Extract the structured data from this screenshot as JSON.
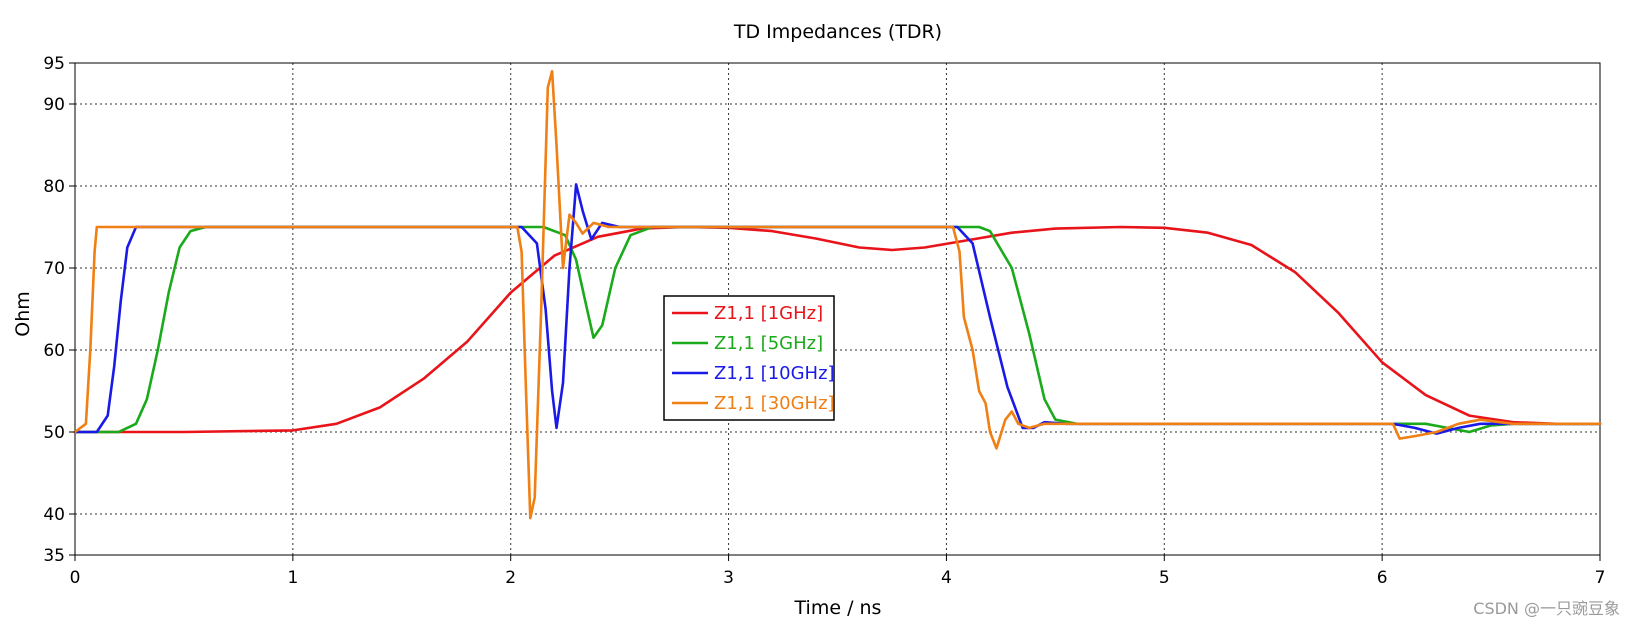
{
  "chart_data": {
    "type": "line",
    "title": "TD Impedances (TDR)",
    "xlabel": "Time / ns",
    "ylabel": "Ohm",
    "xlim": [
      0,
      7
    ],
    "ylim": [
      35,
      95
    ],
    "x_ticks": [
      0,
      1,
      2,
      3,
      4,
      5,
      6,
      7
    ],
    "y_ticks": [
      35,
      40,
      50,
      60,
      70,
      80,
      90,
      95
    ],
    "grid": true,
    "legend_position": "center",
    "series": [
      {
        "name": "Z1,1 [1GHz]",
        "color": "#e8141a",
        "points": [
          [
            0,
            50
          ],
          [
            0.5,
            50
          ],
          [
            1,
            50.2
          ],
          [
            1.2,
            51
          ],
          [
            1.4,
            53
          ],
          [
            1.6,
            56.5
          ],
          [
            1.8,
            61
          ],
          [
            2,
            67
          ],
          [
            2.2,
            71.5
          ],
          [
            2.4,
            73.8
          ],
          [
            2.6,
            74.8
          ],
          [
            2.8,
            75
          ],
          [
            3,
            74.9
          ],
          [
            3.2,
            74.5
          ],
          [
            3.4,
            73.6
          ],
          [
            3.6,
            72.5
          ],
          [
            3.75,
            72.2
          ],
          [
            3.9,
            72.5
          ],
          [
            4.1,
            73.4
          ],
          [
            4.3,
            74.3
          ],
          [
            4.5,
            74.8
          ],
          [
            4.8,
            75
          ],
          [
            5,
            74.9
          ],
          [
            5.2,
            74.3
          ],
          [
            5.4,
            72.8
          ],
          [
            5.6,
            69.5
          ],
          [
            5.8,
            64.5
          ],
          [
            6,
            58.5
          ],
          [
            6.2,
            54.5
          ],
          [
            6.4,
            52
          ],
          [
            6.6,
            51.2
          ],
          [
            6.8,
            51
          ],
          [
            7,
            51
          ]
        ]
      },
      {
        "name": "Z1,1 [5GHz]",
        "color": "#1aaa1a",
        "points": [
          [
            0,
            50
          ],
          [
            0.2,
            50
          ],
          [
            0.28,
            51
          ],
          [
            0.33,
            54
          ],
          [
            0.38,
            60
          ],
          [
            0.43,
            67
          ],
          [
            0.48,
            72.5
          ],
          [
            0.53,
            74.5
          ],
          [
            0.6,
            75
          ],
          [
            2.15,
            75
          ],
          [
            2.25,
            74
          ],
          [
            2.3,
            71
          ],
          [
            2.35,
            65
          ],
          [
            2.38,
            61.5
          ],
          [
            2.42,
            63
          ],
          [
            2.48,
            70
          ],
          [
            2.55,
            74
          ],
          [
            2.65,
            75
          ],
          [
            4.15,
            75
          ],
          [
            4.2,
            74.5
          ],
          [
            4.3,
            70
          ],
          [
            4.38,
            62
          ],
          [
            4.45,
            54
          ],
          [
            4.5,
            51.5
          ],
          [
            4.6,
            51
          ],
          [
            6.2,
            51
          ],
          [
            6.3,
            50.5
          ],
          [
            6.4,
            50
          ],
          [
            6.5,
            50.8
          ],
          [
            6.6,
            51
          ],
          [
            7,
            51
          ]
        ]
      },
      {
        "name": "Z1,1 [10GHz]",
        "color": "#1a1ae8",
        "points": [
          [
            0,
            50
          ],
          [
            0.1,
            50
          ],
          [
            0.15,
            52
          ],
          [
            0.18,
            58
          ],
          [
            0.21,
            66
          ],
          [
            0.24,
            72.5
          ],
          [
            0.28,
            75
          ],
          [
            2.05,
            75
          ],
          [
            2.12,
            73
          ],
          [
            2.16,
            65
          ],
          [
            2.19,
            55
          ],
          [
            2.21,
            50.5
          ],
          [
            2.24,
            56
          ],
          [
            2.27,
            70
          ],
          [
            2.3,
            80.2
          ],
          [
            2.33,
            77
          ],
          [
            2.37,
            73.5
          ],
          [
            2.42,
            75.5
          ],
          [
            2.5,
            75
          ],
          [
            4.05,
            75
          ],
          [
            4.12,
            73
          ],
          [
            4.2,
            64
          ],
          [
            4.28,
            55.5
          ],
          [
            4.35,
            50.5
          ],
          [
            4.4,
            50.5
          ],
          [
            4.45,
            51.2
          ],
          [
            4.55,
            51
          ],
          [
            6.05,
            51
          ],
          [
            6.15,
            50.5
          ],
          [
            6.25,
            49.8
          ],
          [
            6.35,
            50.5
          ],
          [
            6.45,
            51
          ],
          [
            7,
            51
          ]
        ]
      },
      {
        "name": "Z1,1 [30GHz]",
        "color": "#f07f14",
        "points": [
          [
            0,
            50
          ],
          [
            0.05,
            51
          ],
          [
            0.07,
            60
          ],
          [
            0.09,
            72
          ],
          [
            0.1,
            75
          ],
          [
            2.03,
            75
          ],
          [
            2.05,
            72
          ],
          [
            2.07,
            55
          ],
          [
            2.09,
            39.5
          ],
          [
            2.11,
            42
          ],
          [
            2.14,
            65
          ],
          [
            2.17,
            92
          ],
          [
            2.19,
            94
          ],
          [
            2.21,
            85
          ],
          [
            2.24,
            70
          ],
          [
            2.27,
            76.5
          ],
          [
            2.3,
            75.5
          ],
          [
            2.33,
            74.2
          ],
          [
            2.38,
            75.5
          ],
          [
            2.45,
            75
          ],
          [
            4.03,
            75
          ],
          [
            4.06,
            72
          ],
          [
            4.08,
            64
          ],
          [
            4.12,
            60
          ],
          [
            4.15,
            55
          ],
          [
            4.18,
            53.5
          ],
          [
            4.2,
            50
          ],
          [
            4.23,
            48
          ],
          [
            4.27,
            51.5
          ],
          [
            4.3,
            52.5
          ],
          [
            4.33,
            51
          ],
          [
            4.38,
            50.5
          ],
          [
            4.45,
            51
          ],
          [
            6.05,
            51
          ],
          [
            6.08,
            49.2
          ],
          [
            6.15,
            49.5
          ],
          [
            6.25,
            50
          ],
          [
            6.35,
            51
          ],
          [
            6.45,
            51.5
          ],
          [
            6.6,
            51
          ],
          [
            7,
            51
          ]
        ]
      }
    ]
  },
  "watermark": "CSDN @一只豌豆象"
}
